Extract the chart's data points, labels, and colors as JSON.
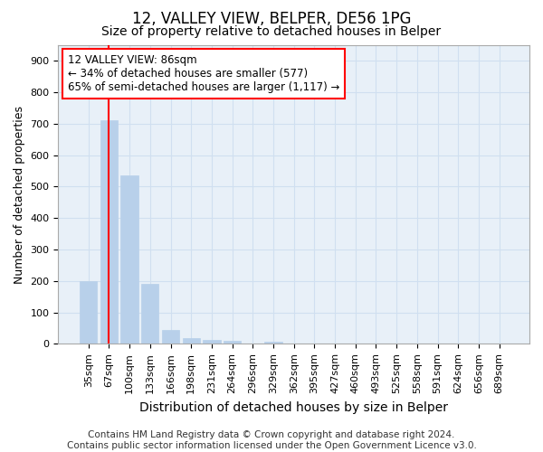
{
  "title1": "12, VALLEY VIEW, BELPER, DE56 1PG",
  "title2": "Size of property relative to detached houses in Belper",
  "xlabel": "Distribution of detached houses by size in Belper",
  "ylabel": "Number of detached properties",
  "categories": [
    "35sqm",
    "67sqm",
    "100sqm",
    "133sqm",
    "166sqm",
    "198sqm",
    "231sqm",
    "264sqm",
    "296sqm",
    "329sqm",
    "362sqm",
    "395sqm",
    "427sqm",
    "460sqm",
    "493sqm",
    "525sqm",
    "558sqm",
    "591sqm",
    "624sqm",
    "656sqm",
    "689sqm"
  ],
  "values": [
    200,
    710,
    535,
    190,
    43,
    18,
    13,
    9,
    0,
    8,
    0,
    0,
    0,
    0,
    0,
    0,
    0,
    0,
    0,
    0,
    0
  ],
  "bar_color": "#b8d0ea",
  "bar_edge_color": "#b8d0ea",
  "grid_color": "#d0dff0",
  "background_color": "#ffffff",
  "plot_bg_color": "#e8f0f8",
  "vline_x": 1.0,
  "vline_color": "red",
  "annotation_text": "12 VALLEY VIEW: 86sqm\n← 34% of detached houses are smaller (577)\n65% of semi-detached houses are larger (1,117) →",
  "annotation_box_color": "white",
  "annotation_box_edge": "red",
  "ylim": [
    0,
    950
  ],
  "yticks": [
    0,
    100,
    200,
    300,
    400,
    500,
    600,
    700,
    800,
    900
  ],
  "footnote": "Contains HM Land Registry data © Crown copyright and database right 2024.\nContains public sector information licensed under the Open Government Licence v3.0.",
  "title1_fontsize": 12,
  "title2_fontsize": 10,
  "xlabel_fontsize": 10,
  "ylabel_fontsize": 9,
  "tick_fontsize": 8,
  "footnote_fontsize": 7.5
}
